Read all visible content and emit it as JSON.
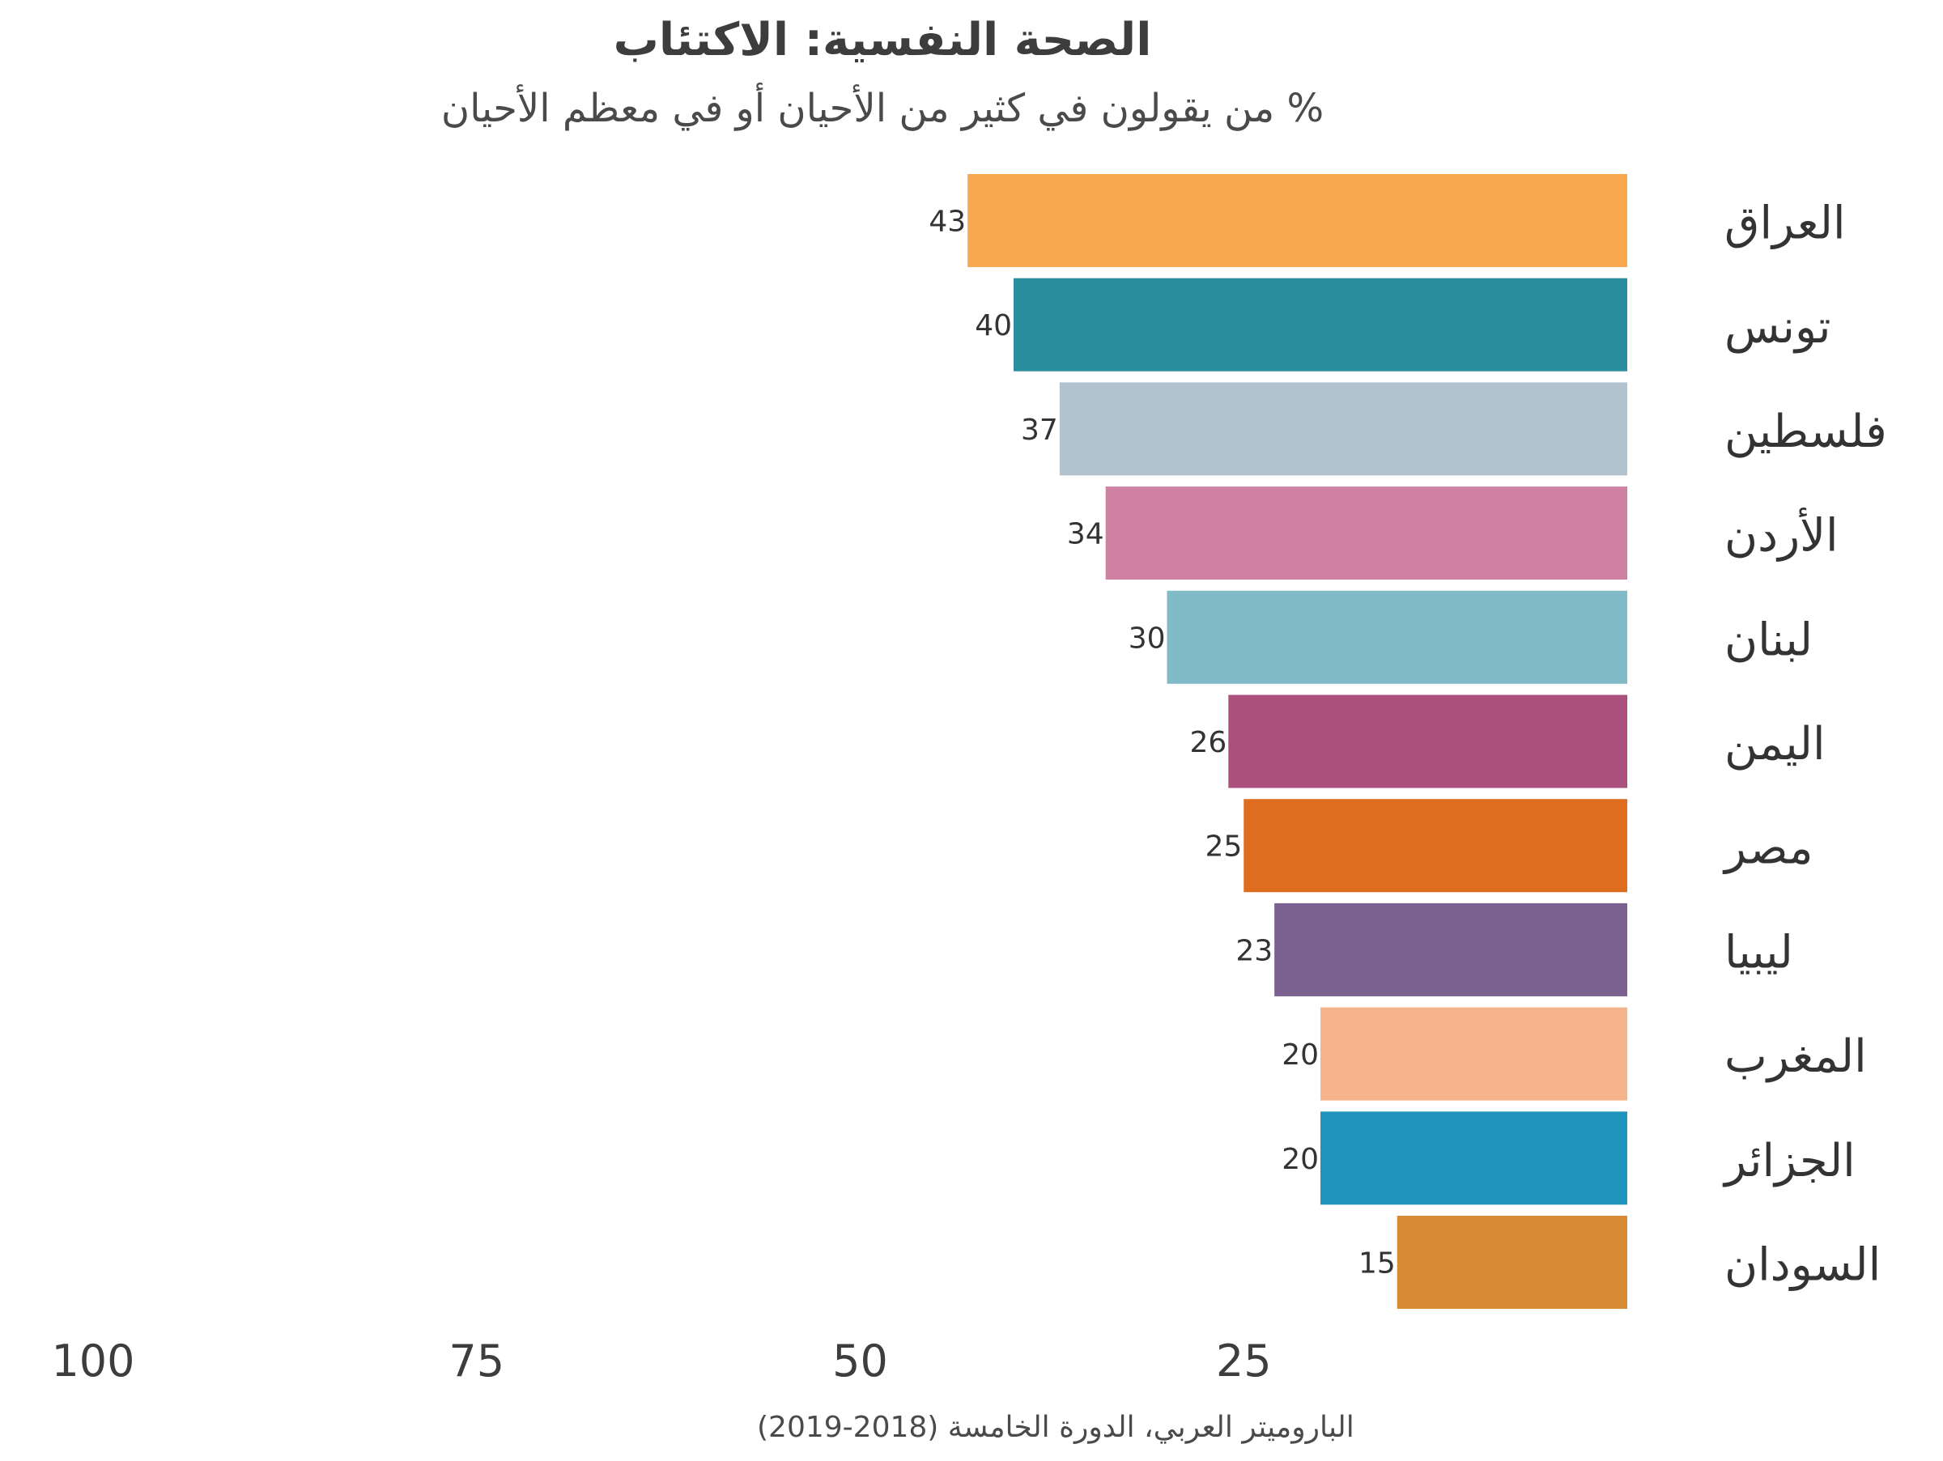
{
  "chart_data": {
    "type": "bar",
    "orientation": "horizontal",
    "title": "الصحة النفسية: الاكتئاب",
    "subtitle": "% من يقولون في كثير من الأحيان أو في معظم الأحيان",
    "categories": [
      "العراق",
      "تونس",
      "فلسطين",
      "الأردن",
      "لبنان",
      "اليمن",
      "مصر",
      "ليبيا",
      "المغرب",
      "الجزائر",
      "السودان"
    ],
    "values": [
      43,
      40,
      37,
      34,
      30,
      26,
      25,
      23,
      20,
      20,
      15
    ],
    "value_labels": [
      "43",
      "40",
      "37",
      "34",
      "30",
      "26",
      "25",
      "23",
      "20",
      "20",
      "15"
    ],
    "colors": [
      "#F8A84E",
      "#2B8E9E",
      "#B1C3CF",
      "#CE81A1",
      "#82BBC8",
      "#AB4F7D",
      "#DE6D20",
      "#7A618F",
      "#F5B48C",
      "#2094BC",
      "#D98A34"
    ],
    "xlim": [
      100,
      0
    ],
    "xticks": [
      100,
      75,
      50,
      25
    ],
    "xtick_labels": [
      "100",
      "75",
      "50",
      "25"
    ],
    "xlabel": "",
    "ylabel": "",
    "grid": false,
    "legend": "none",
    "source": "الباروميتر العربي، الدورة الخامسة (2018-2019)"
  }
}
